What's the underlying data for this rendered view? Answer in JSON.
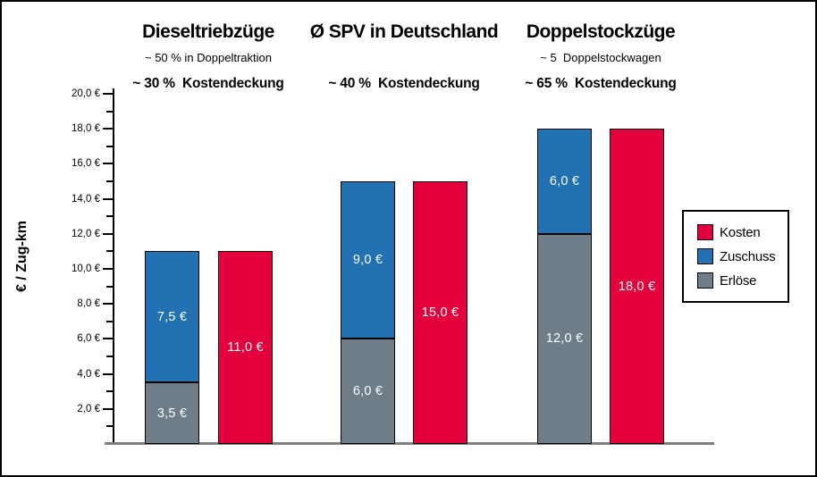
{
  "chart_data": {
    "type": "bar",
    "ylabel": "€ / Zug-km",
    "ylim": [
      0,
      20
    ],
    "ytick_step": 2,
    "minor_tick_step": 1,
    "grid": false,
    "legend_position": "right",
    "ytick_labels": [
      "2,0 €",
      "4,0 €",
      "6,0 €",
      "8,0 €",
      "10,0 €",
      "12,0 €",
      "14,0 €",
      "16,0 €",
      "18,0 €",
      "20,0 €"
    ],
    "legend": [
      {
        "label": "Kosten",
        "color": "#e4003c"
      },
      {
        "label": "Zuschuss",
        "color": "#2272b3"
      },
      {
        "label": "Erlöse",
        "color": "#6f7d88"
      }
    ],
    "series_colors": {
      "Kosten": "#e4003c",
      "Zuschuss": "#2272b3",
      "Erlöse": "#6f7d88"
    },
    "axis_color": "#000000",
    "baseline_color": "#808080",
    "bar_label_color": "#ffffff",
    "groups": [
      {
        "title": "Dieseltriebzüge",
        "subtitle": "~ 50 % in Doppeltraktion",
        "coverage": "~ 30 %  Kostendeckung",
        "stacked": [
          {
            "series": "Erlöse",
            "value": 3.5,
            "label": "3,5 €"
          },
          {
            "series": "Zuschuss",
            "value": 7.5,
            "label": "7,5 €"
          }
        ],
        "kosten": {
          "series": "Kosten",
          "value": 11.0,
          "label": "11,0 €"
        }
      },
      {
        "title": "Ø SPV in Deutschland",
        "subtitle": "",
        "coverage": "~ 40 %  Kostendeckung",
        "stacked": [
          {
            "series": "Erlöse",
            "value": 6.0,
            "label": "6,0 €"
          },
          {
            "series": "Zuschuss",
            "value": 9.0,
            "label": "9,0 €"
          }
        ],
        "kosten": {
          "series": "Kosten",
          "value": 15.0,
          "label": "15,0 €"
        }
      },
      {
        "title": "Doppelstockzüge",
        "subtitle": "~ 5  Doppelstockwagen",
        "coverage": "~ 65 %  Kostendeckung",
        "stacked": [
          {
            "series": "Erlöse",
            "value": 12.0,
            "label": "12,0 €"
          },
          {
            "series": "Zuschuss",
            "value": 6.0,
            "label": "6,0 €"
          }
        ],
        "kosten": {
          "series": "Kosten",
          "value": 18.0,
          "label": "18,0 €"
        }
      }
    ]
  }
}
